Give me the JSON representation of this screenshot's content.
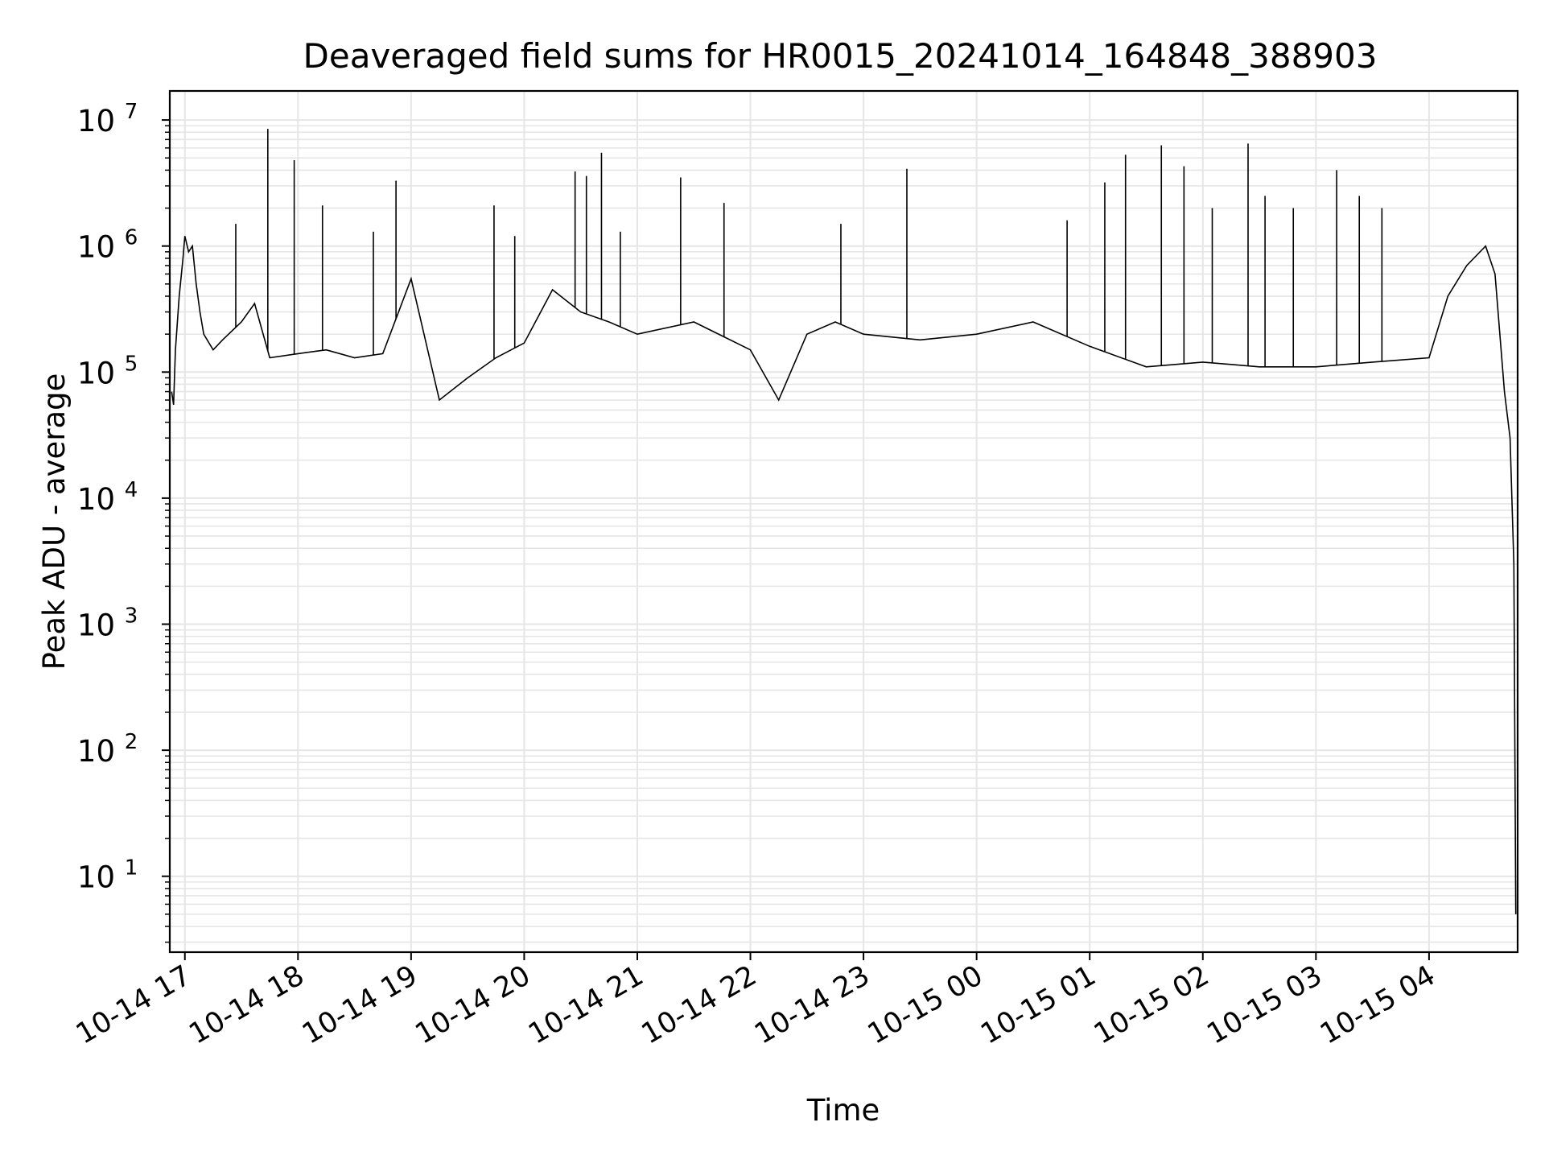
{
  "chart_data": {
    "type": "line",
    "title": "Deaveraged field sums for HR0015_20241014_164848_388903",
    "xlabel": "Time",
    "ylabel": "Peak ADU - average",
    "y_scale": "log",
    "ylim": [
      2.5,
      17000000
    ],
    "xlim": [
      "2024-10-14 16:52",
      "2024-10-15 04:47"
    ],
    "x_ticks": [
      "10-14 17",
      "10-14 18",
      "10-14 19",
      "10-14 20",
      "10-14 21",
      "10-14 22",
      "10-14 23",
      "10-15 00",
      "10-15 01",
      "10-15 02",
      "10-15 03",
      "10-15 04"
    ],
    "x_tick_values": [
      "2024-10-14 17:00",
      "2024-10-14 18:00",
      "2024-10-14 19:00",
      "2024-10-14 20:00",
      "2024-10-14 21:00",
      "2024-10-14 22:00",
      "2024-10-14 23:00",
      "2024-10-15 00:00",
      "2024-10-15 01:00",
      "2024-10-15 02:00",
      "2024-10-15 03:00",
      "2024-10-15 04:00"
    ],
    "y_ticks": [
      {
        "base": "10",
        "exp": "1",
        "value": 10
      },
      {
        "base": "10",
        "exp": "2",
        "value": 100
      },
      {
        "base": "10",
        "exp": "3",
        "value": 1000
      },
      {
        "base": "10",
        "exp": "4",
        "value": 10000
      },
      {
        "base": "10",
        "exp": "5",
        "value": 100000
      },
      {
        "base": "10",
        "exp": "6",
        "value": 1000000
      },
      {
        "base": "10",
        "exp": "7",
        "value": 10000000
      }
    ],
    "grid": true,
    "grid_minor": true,
    "series_color": "#000000",
    "grid_color": "#e6e6e6",
    "series": [
      {
        "points": [
          [
            "2024-10-14 16:53",
            70000
          ],
          [
            "2024-10-14 16:54",
            55000
          ],
          [
            "2024-10-14 16:55",
            150000
          ],
          [
            "2024-10-14 16:57",
            400000
          ],
          [
            "2024-10-14 16:59",
            800000
          ],
          [
            "2024-10-14 17:00",
            1200000
          ],
          [
            "2024-10-14 17:02",
            900000
          ],
          [
            "2024-10-14 17:04",
            1000000
          ],
          [
            "2024-10-14 17:06",
            500000
          ],
          [
            "2024-10-14 17:08",
            300000
          ],
          [
            "2024-10-14 17:10",
            200000
          ],
          [
            "2024-10-14 17:15",
            150000
          ],
          [
            "2024-10-14 17:20",
            180000
          ],
          [
            "2024-10-14 17:30",
            250000
          ],
          [
            "2024-10-14 17:37",
            350000
          ],
          [
            "2024-10-14 17:45",
            130000
          ],
          [
            "2024-10-14 18:00",
            140000
          ],
          [
            "2024-10-14 18:15",
            150000
          ],
          [
            "2024-10-14 18:30",
            130000
          ],
          [
            "2024-10-14 18:45",
            140000
          ],
          [
            "2024-10-14 19:00",
            550000
          ],
          [
            "2024-10-14 19:15",
            60000
          ],
          [
            "2024-10-14 19:30",
            90000
          ],
          [
            "2024-10-14 19:45",
            130000
          ],
          [
            "2024-10-14 20:00",
            170000
          ],
          [
            "2024-10-14 20:15",
            450000
          ],
          [
            "2024-10-14 20:30",
            300000
          ],
          [
            "2024-10-14 20:45",
            250000
          ],
          [
            "2024-10-14 21:00",
            200000
          ],
          [
            "2024-10-14 21:30",
            250000
          ],
          [
            "2024-10-14 22:00",
            150000
          ],
          [
            "2024-10-14 22:15",
            60000
          ],
          [
            "2024-10-14 22:30",
            200000
          ],
          [
            "2024-10-14 22:45",
            250000
          ],
          [
            "2024-10-14 23:00",
            200000
          ],
          [
            "2024-10-14 23:30",
            180000
          ],
          [
            "2024-10-15 00:00",
            200000
          ],
          [
            "2024-10-15 00:30",
            250000
          ],
          [
            "2024-10-15 01:00",
            160000
          ],
          [
            "2024-10-15 01:30",
            110000
          ],
          [
            "2024-10-15 02:00",
            120000
          ],
          [
            "2024-10-15 02:30",
            110000
          ],
          [
            "2024-10-15 03:00",
            110000
          ],
          [
            "2024-10-15 03:30",
            120000
          ],
          [
            "2024-10-15 04:00",
            130000
          ],
          [
            "2024-10-15 04:10",
            400000
          ],
          [
            "2024-10-15 04:20",
            700000
          ],
          [
            "2024-10-15 04:30",
            1000000
          ],
          [
            "2024-10-15 04:35",
            600000
          ],
          [
            "2024-10-15 04:40",
            70000
          ],
          [
            "2024-10-15 04:43",
            30000
          ],
          [
            "2024-10-15 04:45",
            3000
          ],
          [
            "2024-10-15 04:46",
            5
          ]
        ],
        "spikes": [
          [
            "2024-10-14 17:44",
            8500000
          ],
          [
            "2024-10-14 17:58",
            4800000
          ],
          [
            "2024-10-14 18:13",
            2100000
          ],
          [
            "2024-10-14 18:52",
            3300000
          ],
          [
            "2024-10-14 19:44",
            2100000
          ],
          [
            "2024-10-14 20:27",
            3900000
          ],
          [
            "2024-10-14 20:41",
            5500000
          ],
          [
            "2024-10-14 20:33",
            3600000
          ],
          [
            "2024-10-14 21:23",
            3500000
          ],
          [
            "2024-10-14 21:46",
            2200000
          ],
          [
            "2024-10-14 23:23",
            4100000
          ],
          [
            "2024-10-15 01:19",
            5300000
          ],
          [
            "2024-10-15 01:38",
            6300000
          ],
          [
            "2024-10-15 01:50",
            4300000
          ],
          [
            "2024-10-15 02:24",
            6500000
          ],
          [
            "2024-10-15 02:05",
            2000000
          ],
          [
            "2024-10-15 02:48",
            2000000
          ],
          [
            "2024-10-15 03:11",
            4000000
          ],
          [
            "2024-10-15 03:35",
            2000000
          ],
          [
            "2024-10-14 17:27",
            1500000
          ],
          [
            "2024-10-14 18:40",
            1300000
          ],
          [
            "2024-10-14 19:55",
            1200000
          ],
          [
            "2024-10-14 20:51",
            1300000
          ],
          [
            "2024-10-14 22:48",
            1500000
          ],
          [
            "2024-10-15 00:48",
            1600000
          ],
          [
            "2024-10-15 01:08",
            3200000
          ],
          [
            "2024-10-15 02:33",
            2500000
          ],
          [
            "2024-10-15 03:23",
            2500000
          ]
        ]
      }
    ]
  }
}
